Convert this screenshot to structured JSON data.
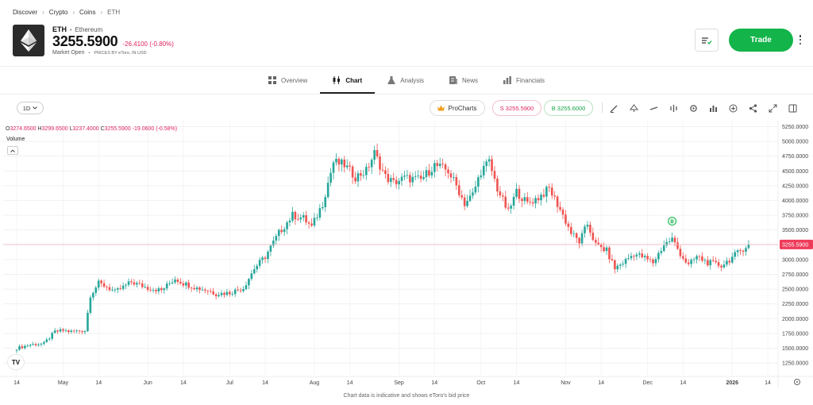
{
  "breadcrumb": {
    "items": [
      "Discover",
      "Crypto",
      "Coins",
      "ETH"
    ]
  },
  "instrument": {
    "symbol": "ETH",
    "name": "Ethereum",
    "price": "3255.5900",
    "change": "-26.4100 (-0.80%)",
    "status": "Market Open",
    "source": "PRICES BY eToro, IN USD",
    "logo_icon": "ethereum-diamond-icon"
  },
  "actions": {
    "trade_label": "Trade",
    "watchlist_icon": "list-edit-icon",
    "more_icon": "vertical-dots-icon"
  },
  "tabs": [
    {
      "label": "Overview",
      "icon": "grid-icon",
      "active": false
    },
    {
      "label": "Chart",
      "icon": "candles-icon",
      "active": true
    },
    {
      "label": "Analysis",
      "icon": "flask-icon",
      "active": false
    },
    {
      "label": "News",
      "icon": "newspaper-icon",
      "active": false
    },
    {
      "label": "Financials",
      "icon": "bars-icon",
      "active": false
    }
  ],
  "toolbar": {
    "period": "1D",
    "prochart_label": "ProCharts",
    "sell_label": "S 3255.5900",
    "buy_label": "B 3255.6000",
    "tools": [
      "pencil-icon",
      "shapes-icon",
      "line-icon",
      "indicator-icon",
      "settings-icon",
      "bar-chart-icon",
      "plus-circle-icon",
      "share-icon",
      "fullscreen-icon",
      "panel-icon"
    ]
  },
  "colors": {
    "up": "#26a69a",
    "down": "#ef5350",
    "trade": "#13b44a",
    "price_line": "#f4b3bd"
  },
  "chart_data": {
    "type": "candlestick",
    "ohlc_readout": {
      "O": "3274.6500",
      "H": "3299.6500",
      "L": "3237.4000",
      "C": "3255.5900",
      "change": "-19.0600 (-0.58%)"
    },
    "volume_label": "Volume",
    "current_price_label": "3255.5900",
    "current_price": 3255.59,
    "ylim": [
      1050,
      5350
    ],
    "y_ticks": [
      "5250.0000",
      "5000.0000",
      "4750.0000",
      "4500.0000",
      "4250.0000",
      "4000.0000",
      "3750.0000",
      "3500.0000",
      "3250.0000",
      "3000.0000",
      "2750.0000",
      "2500.0000",
      "2250.0000",
      "2000.0000",
      "1750.0000",
      "1500.0000",
      "1250.0000"
    ],
    "x_ticks": [
      {
        "label": "14",
        "day": 0
      },
      {
        "label": "May",
        "day": 17
      },
      {
        "label": "14",
        "day": 30
      },
      {
        "label": "Jun",
        "day": 48
      },
      {
        "label": "14",
        "day": 61
      },
      {
        "label": "Jul",
        "day": 78
      },
      {
        "label": "14",
        "day": 91
      },
      {
        "label": "Aug",
        "day": 109
      },
      {
        "label": "14",
        "day": 122
      },
      {
        "label": "Sep",
        "day": 140
      },
      {
        "label": "14",
        "day": 153
      },
      {
        "label": "Oct",
        "day": 170
      },
      {
        "label": "14",
        "day": 183
      },
      {
        "label": "Nov",
        "day": 201
      },
      {
        "label": "14",
        "day": 214
      },
      {
        "label": "Dec",
        "day": 231
      },
      {
        "label": "14",
        "day": 244
      },
      {
        "label": "2026",
        "day": 262
      },
      {
        "label": "14",
        "day": 275
      }
    ],
    "close_path": [
      [
        0,
        1500
      ],
      [
        5,
        1560
      ],
      [
        10,
        1580
      ],
      [
        14,
        1780
      ],
      [
        17,
        1800
      ],
      [
        20,
        1780
      ],
      [
        25,
        1800
      ],
      [
        27,
        2400
      ],
      [
        30,
        2600
      ],
      [
        33,
        2540
      ],
      [
        36,
        2450
      ],
      [
        42,
        2620
      ],
      [
        48,
        2520
      ],
      [
        53,
        2480
      ],
      [
        58,
        2680
      ],
      [
        61,
        2600
      ],
      [
        66,
        2520
      ],
      [
        70,
        2480
      ],
      [
        73,
        2420
      ],
      [
        78,
        2440
      ],
      [
        83,
        2520
      ],
      [
        87,
        2850
      ],
      [
        91,
        3050
      ],
      [
        96,
        3450
      ],
      [
        101,
        3750
      ],
      [
        105,
        3700
      ],
      [
        108,
        3550
      ],
      [
        112,
        3950
      ],
      [
        116,
        4650
      ],
      [
        120,
        4600
      ],
      [
        124,
        4400
      ],
      [
        128,
        4500
      ],
      [
        131,
        4800
      ],
      [
        135,
        4400
      ],
      [
        138,
        4300
      ],
      [
        142,
        4380
      ],
      [
        148,
        4350
      ],
      [
        153,
        4600
      ],
      [
        158,
        4500
      ],
      [
        161,
        4250
      ],
      [
        164,
        3950
      ],
      [
        167,
        4100
      ],
      [
        170,
        4500
      ],
      [
        173,
        4650
      ],
      [
        176,
        4200
      ],
      [
        180,
        3800
      ],
      [
        183,
        4150
      ],
      [
        187,
        3950
      ],
      [
        191,
        4050
      ],
      [
        195,
        4200
      ],
      [
        199,
        3850
      ],
      [
        203,
        3450
      ],
      [
        206,
        3300
      ],
      [
        209,
        3600
      ],
      [
        212,
        3250
      ],
      [
        216,
        3150
      ],
      [
        219,
        2850
      ],
      [
        222,
        2950
      ],
      [
        226,
        3100
      ],
      [
        229,
        3050
      ],
      [
        233,
        2950
      ],
      [
        237,
        3250
      ],
      [
        240,
        3350
      ],
      [
        243,
        3100
      ],
      [
        246,
        2900
      ],
      [
        249,
        3050
      ],
      [
        253,
        2950
      ],
      [
        258,
        2900
      ],
      [
        261,
        3000
      ],
      [
        265,
        3150
      ],
      [
        268,
        3260
      ]
    ],
    "marker": {
      "day": 240,
      "value": 3650,
      "label": "B"
    }
  },
  "footnote": "Chart data is indicative and shows eToro's bid price"
}
